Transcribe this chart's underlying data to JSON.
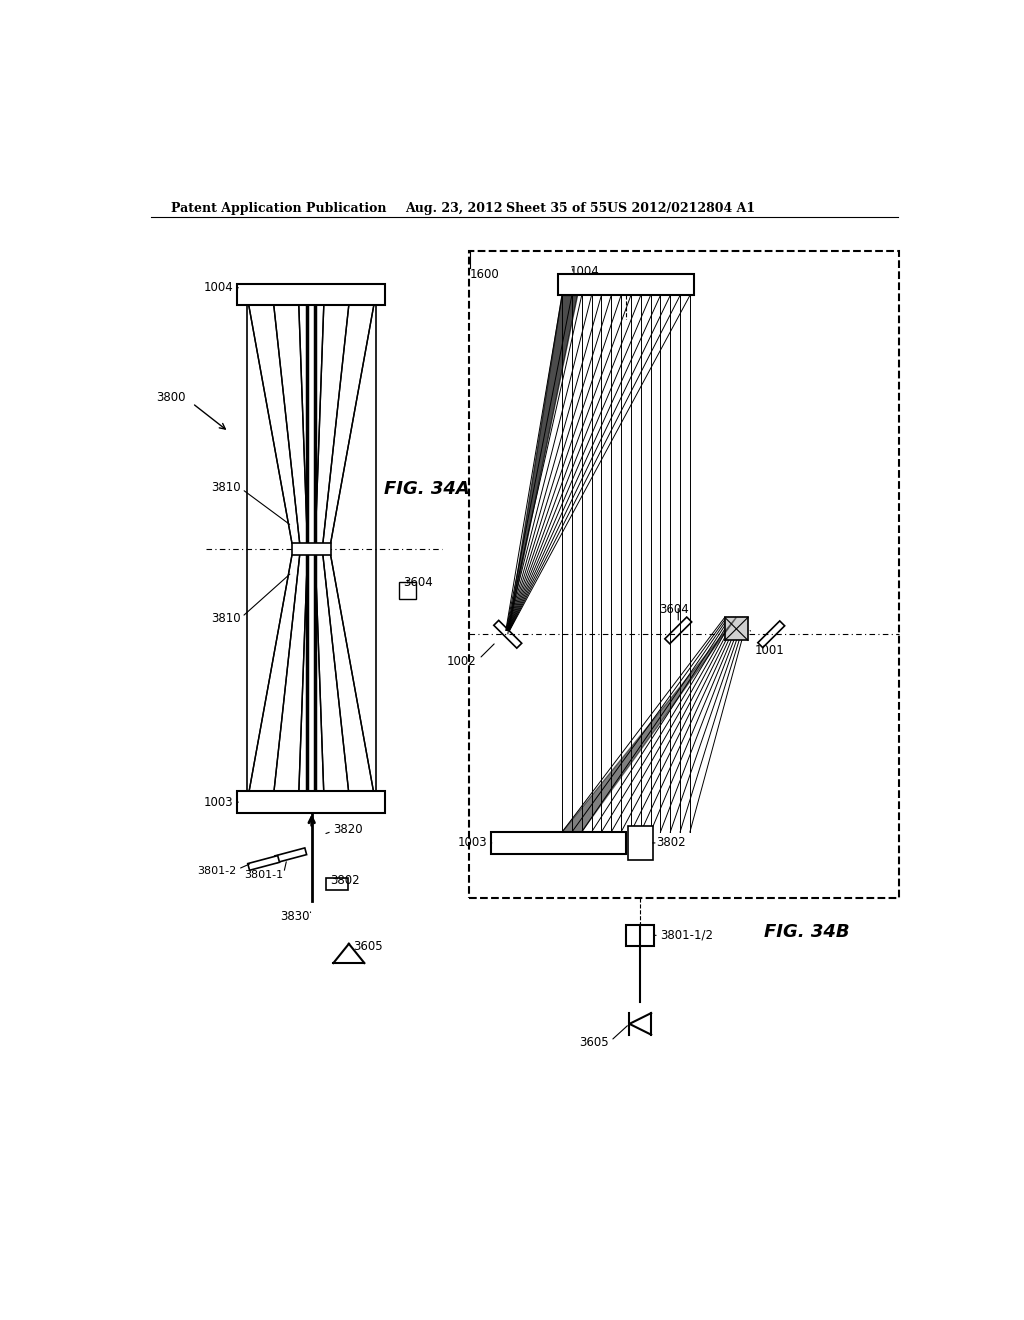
{
  "bg_color": "#ffffff",
  "header_text": "Patent Application Publication",
  "header_date": "Aug. 23, 2012",
  "header_sheet": "Sheet 35 of 55",
  "header_patent": "US 2012/0212804 A1",
  "fig34a_label": "FIG. 34A",
  "fig34b_label": "FIG. 34B"
}
